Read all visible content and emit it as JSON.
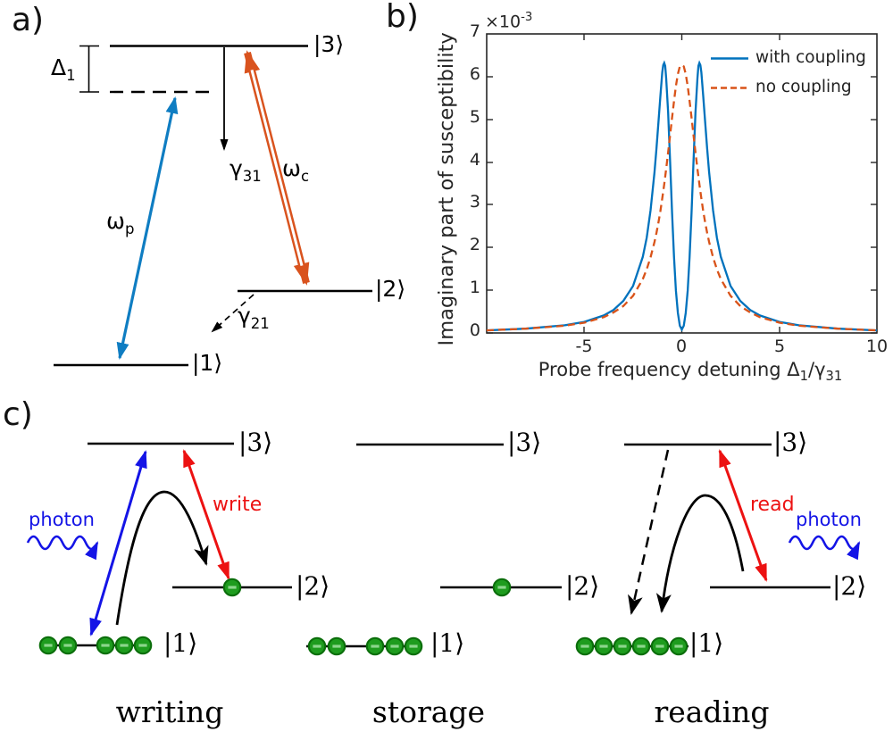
{
  "panel_a": {
    "label": "a)",
    "ket3": "|3⟩",
    "ket2": "|2⟩",
    "ket1": "|1⟩",
    "delta": {
      "base": "Δ",
      "sub": "1"
    },
    "omega_p": {
      "base": "ω",
      "sub": "p"
    },
    "omega_c": {
      "base": "ω",
      "sub": "c"
    },
    "gamma31": {
      "base": "γ",
      "sub": "31"
    },
    "gamma21": {
      "base": "γ",
      "sub": "21"
    },
    "colors": {
      "probe_blue": "#0F7DC2",
      "coupling_orange": "#D9531E"
    }
  },
  "panel_b": {
    "label": "b)",
    "exponent": {
      "base": "×10",
      "sup": "-3"
    },
    "ylabel": "Imaginary part of susceptibility",
    "xlabel": {
      "t1": "Probe frequency detuning Δ",
      "s1": "1",
      "t2": "/γ",
      "s2": "31"
    }
  },
  "chart_data": {
    "type": "line",
    "title": "",
    "xlabel": "Probe frequency detuning Δ1/γ31",
    "ylabel": "Imaginary part of susceptibility",
    "y_units": "1e-3",
    "xlim": [
      -10,
      10
    ],
    "ylim": [
      0,
      7
    ],
    "xticks": [
      -5,
      0,
      5,
      10
    ],
    "yticks": [
      0,
      1,
      2,
      3,
      4,
      5,
      6,
      7
    ],
    "grid": false,
    "legend_position": "top-right",
    "x": [
      -10,
      -8,
      -6,
      -5,
      -4,
      -3.5,
      -3,
      -2.5,
      -2,
      -1.8,
      -1.6,
      -1.4,
      -1.3,
      -1.2,
      -1.1,
      -1,
      -0.95,
      -0.9,
      -0.85,
      -0.8,
      -0.7,
      -0.6,
      -0.5,
      -0.4,
      -0.3,
      -0.2,
      -0.1,
      0,
      0.1,
      0.2,
      0.3,
      0.4,
      0.5,
      0.6,
      0.7,
      0.8,
      0.85,
      0.9,
      0.95,
      1,
      1.1,
      1.2,
      1.3,
      1.4,
      1.6,
      1.8,
      2,
      2.5,
      3,
      3.5,
      4,
      5,
      6,
      8,
      10
    ],
    "series": [
      {
        "name": "with coupling",
        "color": "#0072BD",
        "style": "solid",
        "values": [
          0.06,
          0.1,
          0.18,
          0.26,
          0.41,
          0.54,
          0.75,
          1.1,
          1.78,
          2.23,
          2.87,
          3.76,
          4.31,
          4.92,
          5.54,
          6.1,
          6.27,
          6.32,
          6.25,
          5.96,
          5.16,
          4.01,
          2.81,
          1.77,
          0.99,
          0.47,
          0.17,
          0.08,
          0.17,
          0.47,
          0.99,
          1.77,
          2.81,
          4.01,
          5.16,
          5.96,
          6.25,
          6.32,
          6.27,
          6.1,
          5.54,
          4.92,
          4.31,
          3.76,
          2.87,
          2.23,
          1.78,
          1.1,
          0.75,
          0.54,
          0.41,
          0.26,
          0.18,
          0.1,
          0.06
        ]
      },
      {
        "name": "no coupling",
        "color": "#D95319",
        "style": "dashed",
        "values": [
          0.06,
          0.1,
          0.17,
          0.24,
          0.37,
          0.48,
          0.63,
          0.87,
          1.26,
          1.49,
          1.77,
          2.13,
          2.34,
          2.58,
          2.85,
          3.15,
          3.31,
          3.48,
          3.66,
          3.84,
          4.23,
          4.63,
          5.04,
          5.43,
          5.78,
          6.06,
          6.24,
          6.27,
          6.24,
          6.06,
          5.78,
          5.43,
          5.04,
          4.63,
          4.23,
          3.84,
          3.66,
          3.48,
          3.31,
          3.15,
          2.85,
          2.58,
          2.34,
          2.13,
          1.77,
          1.49,
          1.26,
          0.87,
          0.63,
          0.48,
          0.37,
          0.24,
          0.17,
          0.1,
          0.06
        ]
      }
    ]
  },
  "panel_c": {
    "label": "c)",
    "kets": {
      "k1": "|1⟩",
      "k2": "|2⟩",
      "k3": "|3⟩"
    },
    "stages": [
      {
        "name": "writing",
        "photon_label": "photon",
        "beam_label": "write",
        "atoms_ground": 5,
        "atoms_state2": 1
      },
      {
        "name": "storage",
        "atoms_ground": 5,
        "atoms_state2": 1
      },
      {
        "name": "reading",
        "photon_label": "photon",
        "beam_label": "read",
        "atoms_ground": 6,
        "atoms_state2": 0
      }
    ],
    "colors": {
      "photon_blue": "#1414E6",
      "pump_red": "#EC1212",
      "atom_fill": "#1E9C1E",
      "atom_edge": "#0B6E0B",
      "atom_dash": "#8CD68C"
    }
  }
}
